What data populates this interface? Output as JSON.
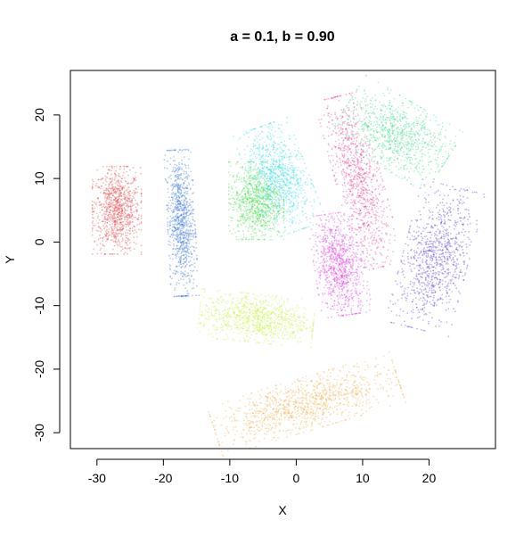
{
  "chart_data": {
    "type": "scatter",
    "title": "a = 0.1, b = 0.90",
    "xlabel": "X",
    "ylabel": "Y",
    "xlim": [
      -34,
      30
    ],
    "ylim": [
      -32.5,
      27
    ],
    "xticks": [
      -30,
      -20,
      -10,
      0,
      10,
      20
    ],
    "yticks": [
      -30,
      -20,
      -10,
      0,
      10,
      20
    ],
    "grid": false,
    "legend": "none",
    "series": [
      {
        "color": "#e8383b",
        "center": [
          -27,
          5
        ],
        "spread": [
          3.2,
          6.0
        ],
        "tilt": 0,
        "points": 900
      },
      {
        "color": "#2f6fdc",
        "center": [
          -17.3,
          3
        ],
        "spread": [
          1.8,
          10.0
        ],
        "tilt": 0.05,
        "points": 900
      },
      {
        "color": "#3ddc3d",
        "center": [
          -6,
          6.5
        ],
        "spread": [
          3.6,
          5.3
        ],
        "tilt": 0,
        "points": 900
      },
      {
        "color": "#27dcf0",
        "center": [
          -2.5,
          10
        ],
        "spread": [
          3.8,
          7.5
        ],
        "tilt": 0.35,
        "points": 900
      },
      {
        "color": "#e02fe0",
        "center": [
          6.5,
          -3.5
        ],
        "spread": [
          3.3,
          7.0
        ],
        "tilt": 0.15,
        "points": 900
      },
      {
        "color": "#f0358e",
        "center": [
          9.5,
          9.5
        ],
        "spread": [
          3.0,
          12.0
        ],
        "tilt": 0.25,
        "points": 900
      },
      {
        "color": "#2fdc86",
        "center": [
          15,
          17
        ],
        "spread": [
          7.5,
          4.8
        ],
        "tilt": -0.55,
        "points": 900
      },
      {
        "color": "#4b2fdc",
        "center": [
          21,
          -2.5
        ],
        "spread": [
          4.3,
          10.0
        ],
        "tilt": -0.25,
        "points": 900
      },
      {
        "color": "#c3f02f",
        "center": [
          -6,
          -12
        ],
        "spread": [
          7.5,
          3.3
        ],
        "tilt": -0.1,
        "points": 900
      },
      {
        "color": "#f0a83a",
        "center": [
          1.5,
          -25.5
        ],
        "spread": [
          12.5,
          3.6
        ],
        "tilt": 0.3,
        "points": 1100
      }
    ]
  }
}
